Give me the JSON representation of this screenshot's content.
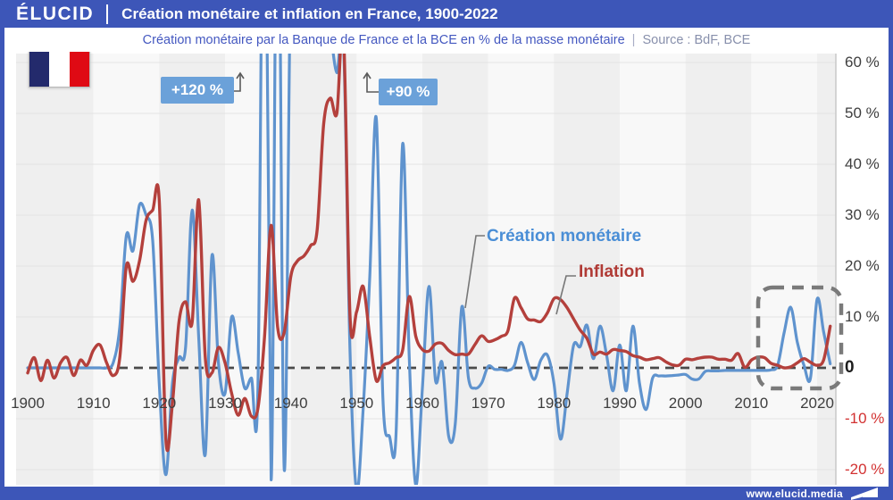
{
  "header": {
    "logo": "ÉLUCID",
    "title": "Création monétaire et inflation en France, 1900-2022"
  },
  "subtitle": {
    "text": "Création monétaire par la Banque de France et la BCE en % de la masse monétaire",
    "separator": "|",
    "source": "Source : BdF, BCE"
  },
  "annotations": {
    "plus120": "+120 %",
    "plus90": "+90 %"
  },
  "legend": {
    "money": "Création monétaire",
    "inflation": "Inflation"
  },
  "footer": {
    "url": "www.elucid.media"
  },
  "colors": {
    "accent": "#3d56b8",
    "money_line": "#5f93ce",
    "inflation_line": "#b4403c",
    "annotation_bg": "#6ba1d9",
    "negative_label": "#d23131",
    "band_dark": "#efefef",
    "band_light": "#f8f8f8",
    "grid": "#e3e3e3",
    "zero_line": "#4a4a4a",
    "axis_line": "#c9c9c9",
    "highlight_box": "#7a7a7a",
    "flag_blue": "#232a6c",
    "flag_red": "#df0a14"
  },
  "chart_data": {
    "type": "line",
    "title": "Création monétaire et inflation en France, 1900-2022",
    "ylabel": "% de la masse monétaire",
    "xlabel": "",
    "x_range": [
      1900,
      2022
    ],
    "ylim": [
      -25,
      62
    ],
    "grid": true,
    "legend_position": "inline-callout",
    "x_ticks": [
      "1900",
      "1910",
      "1920",
      "1930",
      "1940",
      "1950",
      "1960",
      "1970",
      "1980",
      "1990",
      "2000",
      "2010",
      "2020"
    ],
    "y_ticks": [
      {
        "label": "60 %",
        "value": 60
      },
      {
        "label": "50 %",
        "value": 50
      },
      {
        "label": "40 %",
        "value": 40
      },
      {
        "label": "30 %",
        "value": 30
      },
      {
        "label": "20 %",
        "value": 20
      },
      {
        "label": "10 %",
        "value": 10
      },
      {
        "label": "0",
        "value": 0,
        "bold": true
      },
      {
        "label": "-10 %",
        "value": -10,
        "negative": true
      },
      {
        "label": "-20 %",
        "value": -20,
        "negative": true
      }
    ],
    "start_year": 1900,
    "end_year": 2022,
    "off_scale_notes": [
      {
        "label": "+120 %",
        "series": "Création monétaire",
        "around_year": 1938
      },
      {
        "label": "+90 %",
        "series": "Création monétaire",
        "around_year": 1944
      }
    ],
    "highlight_region": {
      "from_year": 2013,
      "to_year": 2022,
      "style": "dashed-box"
    },
    "series": [
      {
        "name": "Création monétaire",
        "color": "#5f93ce",
        "values": [
          0,
          0,
          0,
          0,
          0,
          0,
          0,
          0,
          0,
          0,
          0,
          0,
          0,
          1,
          8,
          26,
          23,
          32,
          30,
          25,
          -3,
          -21,
          -3,
          2,
          4,
          31,
          6,
          -17,
          22,
          1,
          -5,
          10,
          3,
          -4,
          -2,
          -4,
          120,
          -22,
          110,
          -20,
          80,
          76,
          85,
          90,
          88,
          72,
          66,
          58,
          64,
          3,
          -24,
          -8,
          18,
          49,
          -6,
          -13.5,
          -13,
          44,
          2,
          -23,
          -4,
          16,
          -2.5,
          1,
          -13.5,
          -11,
          12,
          -2,
          -4,
          -3,
          0.3,
          -0.3,
          -0.3,
          -0.5,
          0.5,
          5,
          1,
          -2.3,
          1.5,
          2.5,
          -3,
          -14,
          -5,
          4.5,
          4.2,
          8.4,
          1.8,
          8.2,
          2.5,
          -4.5,
          4.5,
          -4.5,
          8.2,
          -3,
          -8.2,
          -2,
          -1.6,
          -1.6,
          -1.5,
          -1.4,
          -1.3,
          -2.2,
          -2.2,
          -0.7,
          -0.6,
          -0.6,
          -0.5,
          -0.5,
          -0.5,
          -0.5,
          -0.5,
          -0.5,
          -0.5,
          -0.4,
          0.5,
          7,
          11.9,
          5,
          0.5,
          -2,
          13.5,
          7,
          0.8
        ]
      },
      {
        "name": "Inflation",
        "color": "#b4403c",
        "values": [
          -1,
          2,
          -2.5,
          1.5,
          -2,
          1,
          2,
          -1.5,
          1.5,
          0.5,
          3.5,
          4.5,
          1,
          -1.5,
          2,
          20,
          17,
          21,
          29,
          31,
          33,
          -14,
          -7,
          9,
          13,
          9,
          33,
          2,
          -1,
          4,
          1,
          -5,
          -9.3,
          -6,
          -9.5,
          -8,
          6,
          28,
          8,
          7,
          18,
          21,
          22,
          24,
          27,
          48,
          53,
          50,
          66,
          10,
          11,
          16,
          6,
          -2.5,
          0.4,
          1,
          2,
          3.5,
          14,
          6.2,
          3.6,
          3.3,
          4.7,
          4.8,
          3.4,
          2.6,
          2.7,
          2.7,
          4.6,
          6.3,
          5.2,
          5.5,
          6.2,
          7.3,
          13.7,
          11.8,
          9.6,
          9.4,
          9.1,
          10.8,
          13.6,
          13.4,
          11.8,
          9.6,
          7.4,
          5.8,
          2.7,
          3.1,
          2.7,
          3.6,
          3.4,
          3.2,
          2.4,
          2.1,
          1.6,
          1.8,
          2,
          1.2,
          0.6,
          0.5,
          1.7,
          1.6,
          1.9,
          2.1,
          2.1,
          1.7,
          1.7,
          1.5,
          2.8,
          0.1,
          1.5,
          2.1,
          2,
          0.9,
          0.5,
          0,
          0.2,
          1,
          1.8,
          1.1,
          0.5,
          1.6,
          8.2
        ]
      }
    ]
  }
}
